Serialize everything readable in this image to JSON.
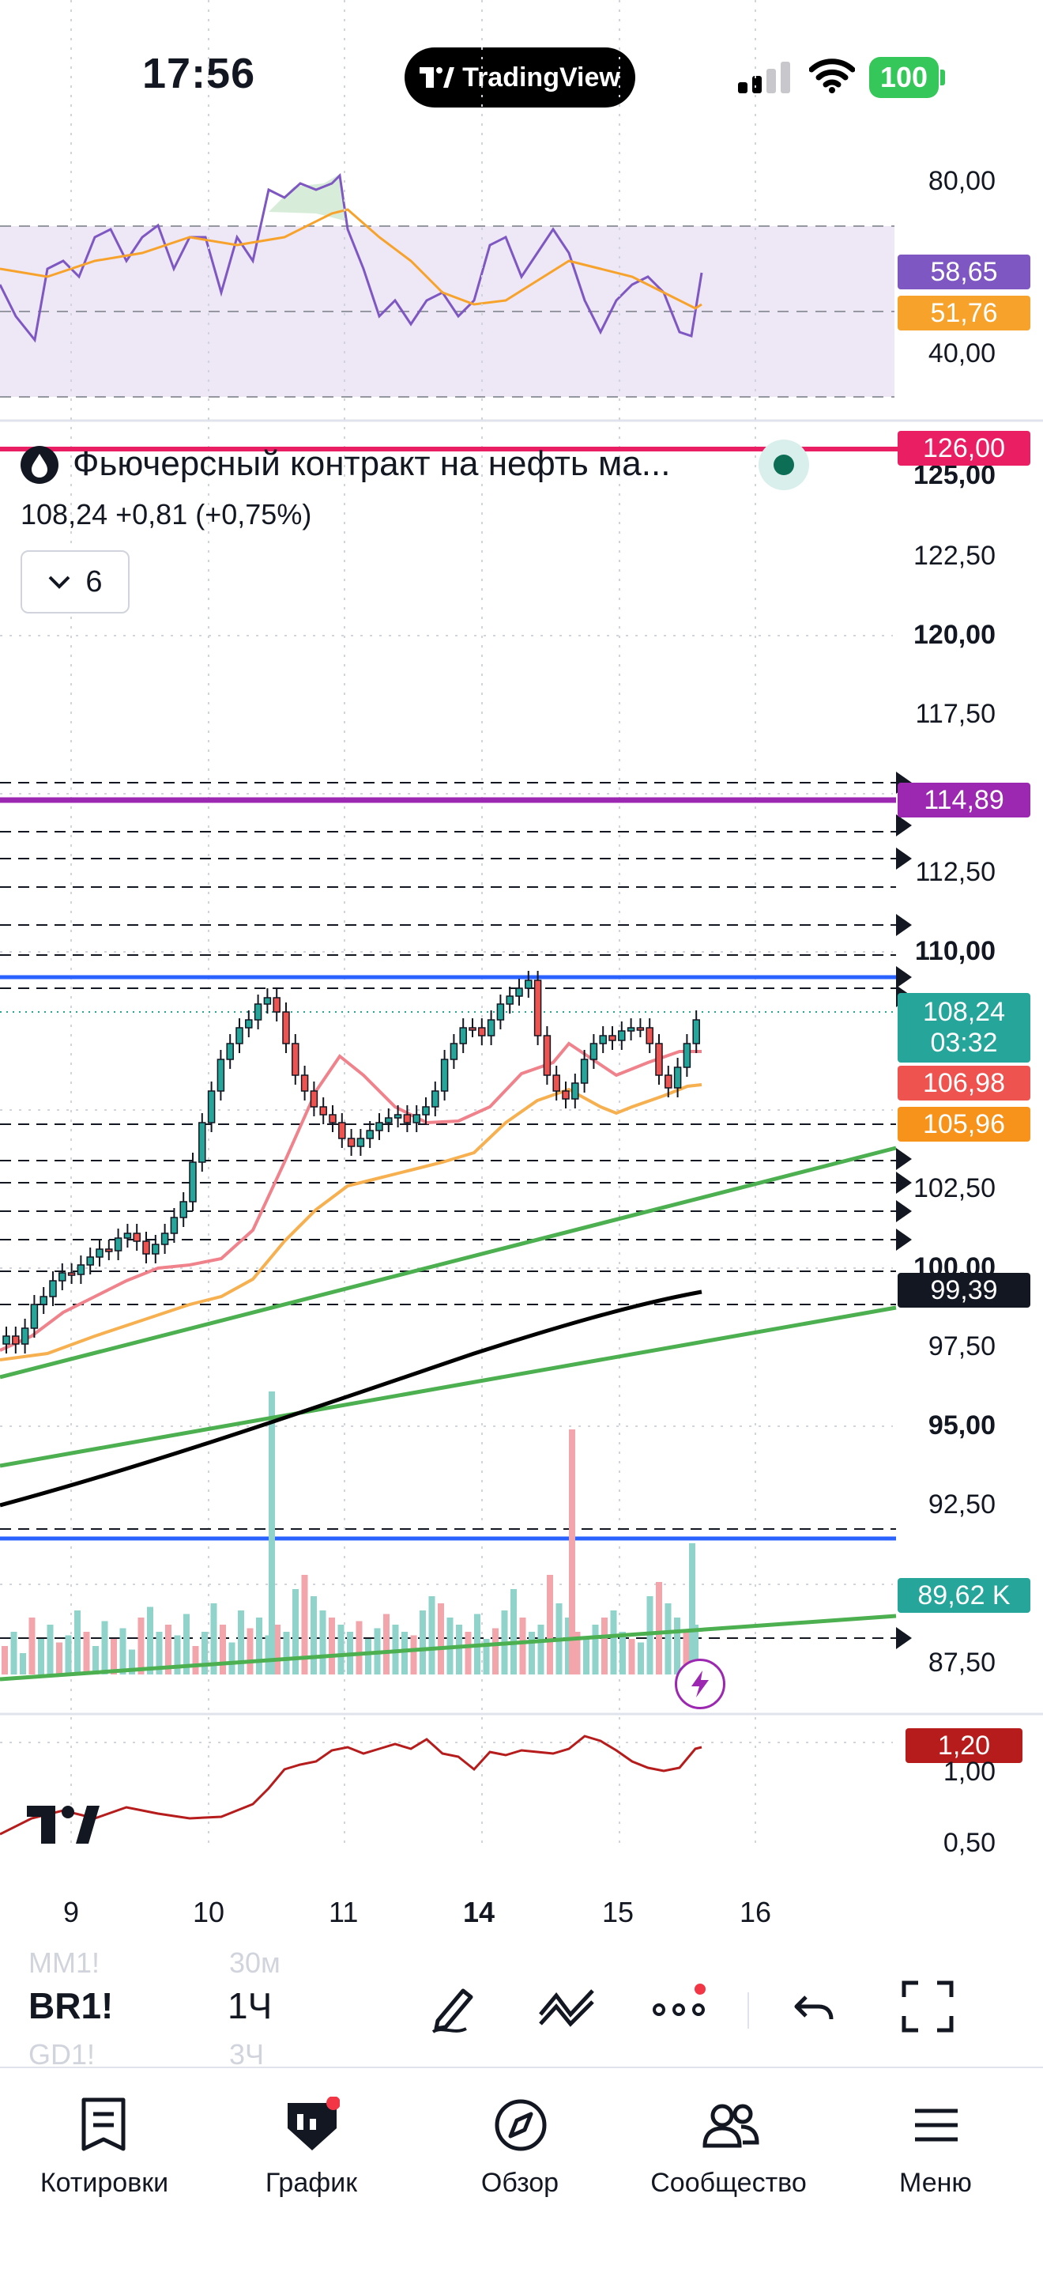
{
  "status_bar": {
    "time": "17:56",
    "app_pill": "TradingView",
    "battery": "100"
  },
  "rsi_panel": {
    "ticks": [
      "80,00",
      "40,00"
    ],
    "rsi_value": "58,65",
    "rsi_ma_value": "51,76",
    "rsi_color": "#7e57c2",
    "rsi_ma_color": "#f7a32b",
    "band_fill": "#ede7f6"
  },
  "main_chart": {
    "symbol_title": "Фьючерсный контракт на нефть ма...",
    "last_price": "108,24",
    "change": "+0,81",
    "change_pct": "(+0,75%)",
    "collapse_count": "6",
    "price_ticks": [
      "125,00",
      "122,50",
      "120,00",
      "117,50",
      "112,50",
      "110,00",
      "102,50",
      "100,00",
      "97,50",
      "95,00",
      "92,50",
      "87,50"
    ],
    "bold_ticks": [
      "125,00",
      "120,00",
      "110,00",
      "100,00",
      "95,00"
    ],
    "tags": {
      "alert_top": "126,00",
      "level_purple": "114,89",
      "last_price": "108,24",
      "countdown": "03:32",
      "ma_fast": "106,98",
      "ma_slow": "105,96",
      "ma_200": "99,39",
      "volume": "89,62 K"
    },
    "colors": {
      "up": "#26a69a",
      "down": "#ef5350",
      "ma_fast": "#f0828c",
      "ma_slow": "#f7b04f",
      "ma_200": "#000000",
      "trend": "#4caf50",
      "level_blue": "#2962ff",
      "level_purple": "#9c27b0",
      "alert_line": "#e91e63"
    }
  },
  "lower_panel": {
    "ticks": [
      "1,00",
      "0,50"
    ],
    "value": "1,20",
    "color": "#b71c1c"
  },
  "time_axis": [
    "9",
    "10",
    "11",
    "14",
    "15",
    "16"
  ],
  "toolbar": {
    "symbol": "BR1!",
    "interval": "1Ч",
    "ghost_symbols": [
      "MM1!",
      "GD1!"
    ],
    "ghost_intervals": [
      "30м",
      "3Ч"
    ]
  },
  "bottom_nav": [
    {
      "label": "Котировки",
      "icon": "watchlist-icon"
    },
    {
      "label": "График",
      "icon": "chart-icon"
    },
    {
      "label": "Обзор",
      "icon": "compass-icon"
    },
    {
      "label": "Сообщество",
      "icon": "community-icon"
    },
    {
      "label": "Меню",
      "icon": "menu-icon"
    }
  ]
}
